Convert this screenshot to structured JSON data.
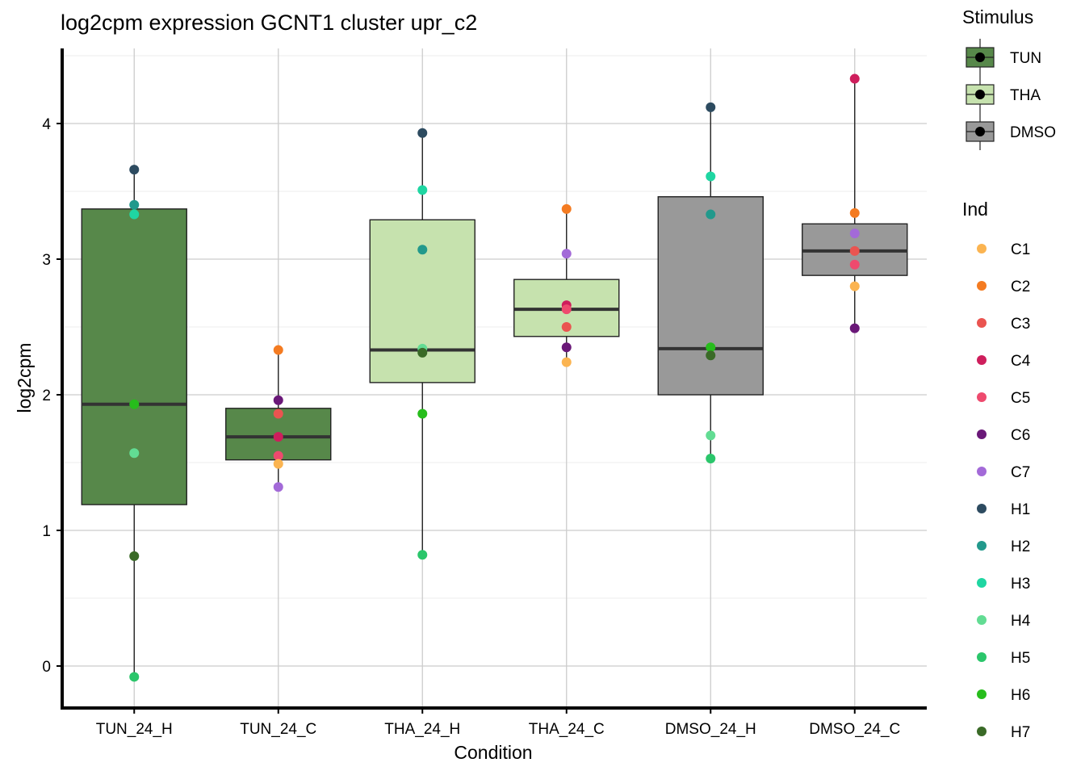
{
  "chart_data": {
    "type": "boxplot",
    "title": "log2cpm expression GCNT1 cluster upr_c2",
    "xlabel": "Condition",
    "ylabel": "log2cpm",
    "ylim": [
      -0.3,
      4.55
    ],
    "yticks": [
      0,
      1,
      2,
      3,
      4
    ],
    "grid": true,
    "categories": [
      "TUN_24_H",
      "TUN_24_C",
      "THA_24_H",
      "THA_24_C",
      "DMSO_24_H",
      "DMSO_24_C"
    ],
    "box_stimulus": [
      "TUN",
      "TUN",
      "THA",
      "THA",
      "DMSO",
      "DMSO"
    ],
    "boxes": [
      {
        "lower_whisker": -0.08,
        "q1": 1.19,
        "median": 1.93,
        "q3": 3.37,
        "upper_whisker": 3.66
      },
      {
        "lower_whisker": 1.32,
        "q1": 1.52,
        "median": 1.69,
        "q3": 1.9,
        "upper_whisker": 2.33
      },
      {
        "lower_whisker": 0.82,
        "q1": 2.09,
        "median": 2.33,
        "q3": 3.29,
        "upper_whisker": 3.93
      },
      {
        "lower_whisker": 2.24,
        "q1": 2.43,
        "median": 2.63,
        "q3": 2.85,
        "upper_whisker": 3.37
      },
      {
        "lower_whisker": 1.53,
        "q1": 2.0,
        "median": 2.34,
        "q3": 3.46,
        "upper_whisker": 4.12
      },
      {
        "lower_whisker": 2.49,
        "q1": 2.88,
        "median": 3.06,
        "q3": 3.26,
        "upper_whisker": 4.33
      }
    ],
    "points": [
      {
        "condition": "TUN_24_H",
        "ind": "H1",
        "value": 3.66
      },
      {
        "condition": "TUN_24_H",
        "ind": "H2",
        "value": 3.4
      },
      {
        "condition": "TUN_24_H",
        "ind": "H3",
        "value": 3.33
      },
      {
        "condition": "TUN_24_H",
        "ind": "H6",
        "value": 1.93
      },
      {
        "condition": "TUN_24_H",
        "ind": "H4",
        "value": 1.57
      },
      {
        "condition": "TUN_24_H",
        "ind": "H7",
        "value": 0.81
      },
      {
        "condition": "TUN_24_H",
        "ind": "H5",
        "value": -0.08
      },
      {
        "condition": "TUN_24_C",
        "ind": "C2",
        "value": 2.33
      },
      {
        "condition": "TUN_24_C",
        "ind": "C6",
        "value": 1.96
      },
      {
        "condition": "TUN_24_C",
        "ind": "C3",
        "value": 1.86
      },
      {
        "condition": "TUN_24_C",
        "ind": "C4",
        "value": 1.69
      },
      {
        "condition": "TUN_24_C",
        "ind": "C5",
        "value": 1.55
      },
      {
        "condition": "TUN_24_C",
        "ind": "C1",
        "value": 1.49
      },
      {
        "condition": "TUN_24_C",
        "ind": "C7",
        "value": 1.32
      },
      {
        "condition": "THA_24_H",
        "ind": "H1",
        "value": 3.93
      },
      {
        "condition": "THA_24_H",
        "ind": "H3",
        "value": 3.51
      },
      {
        "condition": "THA_24_H",
        "ind": "H2",
        "value": 3.07
      },
      {
        "condition": "THA_24_H",
        "ind": "H4",
        "value": 2.34
      },
      {
        "condition": "THA_24_H",
        "ind": "H7",
        "value": 2.31
      },
      {
        "condition": "THA_24_H",
        "ind": "H6",
        "value": 1.86
      },
      {
        "condition": "THA_24_H",
        "ind": "H5",
        "value": 0.82
      },
      {
        "condition": "THA_24_C",
        "ind": "C2",
        "value": 3.37
      },
      {
        "condition": "THA_24_C",
        "ind": "C7",
        "value": 3.04
      },
      {
        "condition": "THA_24_C",
        "ind": "C4",
        "value": 2.66
      },
      {
        "condition": "THA_24_C",
        "ind": "C5",
        "value": 2.63
      },
      {
        "condition": "THA_24_C",
        "ind": "C3",
        "value": 2.5
      },
      {
        "condition": "THA_24_C",
        "ind": "C6",
        "value": 2.35
      },
      {
        "condition": "THA_24_C",
        "ind": "C1",
        "value": 2.24
      },
      {
        "condition": "DMSO_24_H",
        "ind": "H1",
        "value": 4.12
      },
      {
        "condition": "DMSO_24_H",
        "ind": "H3",
        "value": 3.61
      },
      {
        "condition": "DMSO_24_H",
        "ind": "H2",
        "value": 3.33
      },
      {
        "condition": "DMSO_24_H",
        "ind": "H6",
        "value": 2.35
      },
      {
        "condition": "DMSO_24_H",
        "ind": "H7",
        "value": 2.29
      },
      {
        "condition": "DMSO_24_H",
        "ind": "H4",
        "value": 1.7
      },
      {
        "condition": "DMSO_24_H",
        "ind": "H5",
        "value": 1.53
      },
      {
        "condition": "DMSO_24_C",
        "ind": "C4",
        "value": 4.33
      },
      {
        "condition": "DMSO_24_C",
        "ind": "C2",
        "value": 3.34
      },
      {
        "condition": "DMSO_24_C",
        "ind": "C7",
        "value": 3.19
      },
      {
        "condition": "DMSO_24_C",
        "ind": "C3",
        "value": 3.06
      },
      {
        "condition": "DMSO_24_C",
        "ind": "C5",
        "value": 2.96
      },
      {
        "condition": "DMSO_24_C",
        "ind": "C1",
        "value": 2.8
      },
      {
        "condition": "DMSO_24_C",
        "ind": "C6",
        "value": 2.49
      }
    ],
    "legend_stimulus": {
      "title": "Stimulus",
      "entries": [
        {
          "label": "TUN",
          "color": "#57884a"
        },
        {
          "label": "THA",
          "color": "#c6e2ae"
        },
        {
          "label": "DMSO",
          "color": "#999999"
        }
      ]
    },
    "legend_ind": {
      "title": "Ind",
      "entries": [
        {
          "label": "C1",
          "color": "#fbb451"
        },
        {
          "label": "C2",
          "color": "#f47b21"
        },
        {
          "label": "C3",
          "color": "#ea5450"
        },
        {
          "label": "C4",
          "color": "#ce1e5c"
        },
        {
          "label": "C5",
          "color": "#ee4a6e"
        },
        {
          "label": "C6",
          "color": "#6a1878"
        },
        {
          "label": "C7",
          "color": "#a36ad8"
        },
        {
          "label": "H1",
          "color": "#2d4b60"
        },
        {
          "label": "H2",
          "color": "#22998c"
        },
        {
          "label": "H3",
          "color": "#1fd6a2"
        },
        {
          "label": "H4",
          "color": "#62dc93"
        },
        {
          "label": "H5",
          "color": "#2bc66b"
        },
        {
          "label": "H6",
          "color": "#27bd1c"
        },
        {
          "label": "H7",
          "color": "#3a6a27"
        }
      ]
    }
  }
}
